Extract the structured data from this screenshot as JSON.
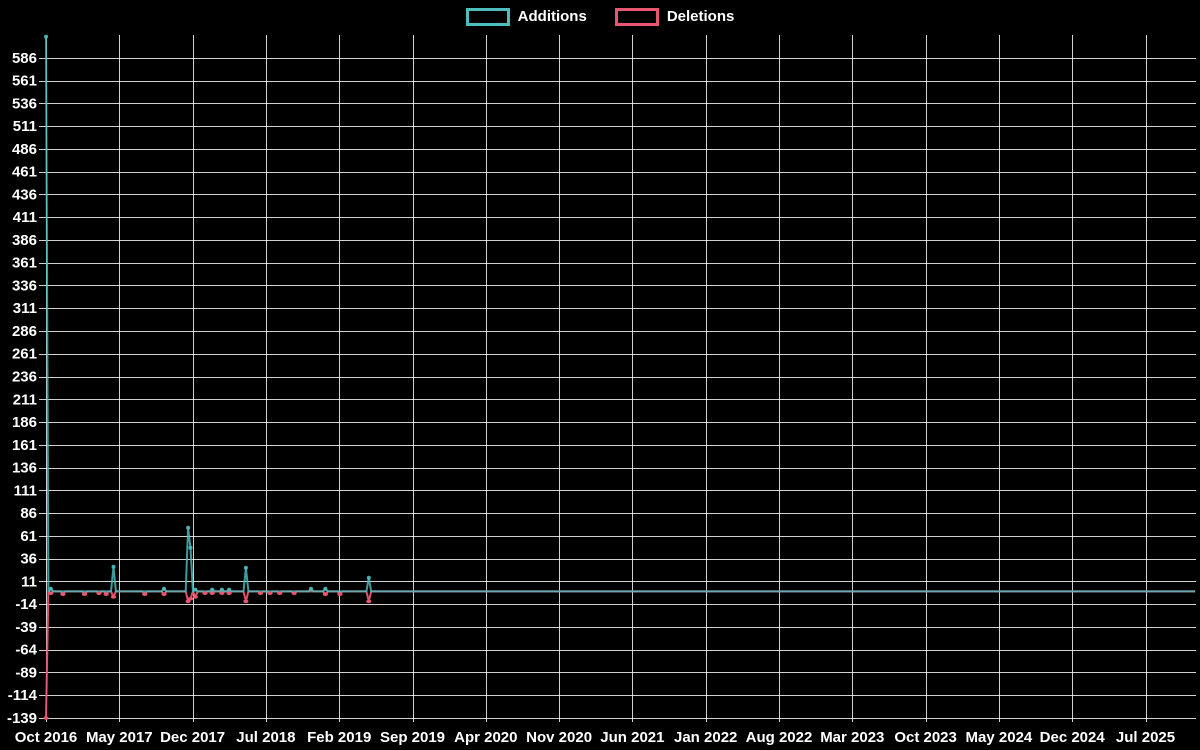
{
  "page": {
    "background": "#000000"
  },
  "legend": {
    "items": [
      {
        "label": "Additions",
        "color": "#4dbdbd"
      },
      {
        "label": "Deletions",
        "color": "#ea5672"
      }
    ]
  },
  "chart_data": {
    "type": "line",
    "title": "",
    "xlabel": "",
    "ylabel": "",
    "grid": true,
    "legend_position": "top-center",
    "background_color": "#000000",
    "grid_color": "#ffffff",
    "text_color": "#ffffff",
    "x_axis": {
      "tick_labels": [
        "Oct 2016",
        "May 2017",
        "Dec 2017",
        "Jul 2018",
        "Feb 2019",
        "Sep 2019",
        "Apr 2020",
        "Nov 2020",
        "Jun 2021",
        "Jan 2022",
        "Aug 2022",
        "Mar 2023",
        "Oct 2023",
        "May 2024",
        "Dec 2024",
        "Jul 2025"
      ],
      "months_per_gridline": 7,
      "range_start": "Oct 2016",
      "range_end": "Oct 2025"
    },
    "y_axis": {
      "tick_values": [
        586,
        561,
        536,
        511,
        486,
        461,
        436,
        411,
        386,
        361,
        336,
        311,
        286,
        261,
        236,
        211,
        186,
        161,
        136,
        111,
        86,
        61,
        36,
        11,
        -14,
        -39,
        -64,
        -89,
        -114,
        -139
      ],
      "tick_step": 25,
      "axis_min": -139,
      "axis_max": 611
    },
    "series": [
      {
        "name": "Additions",
        "color": "#4dbdbd",
        "default_value": 0
      },
      {
        "name": "Deletions",
        "color": "#ea5672",
        "default_value": 0
      }
    ],
    "weeks_total": 478,
    "points": [
      {
        "week": 0,
        "approx_date": "Oct 2016",
        "additions": 609,
        "deletions": -139
      },
      {
        "week": 2,
        "additions": 3,
        "deletions": -2
      },
      {
        "week": 7,
        "additions": 0,
        "deletions": -3
      },
      {
        "week": 16,
        "additions": 0,
        "deletions": -3
      },
      {
        "week": 22,
        "additions": 0,
        "deletions": -2
      },
      {
        "week": 25,
        "additions": 0,
        "deletions": -3
      },
      {
        "week": 28,
        "approx_date": "May 2017",
        "additions": 27,
        "deletions": -6
      },
      {
        "week": 41,
        "additions": 0,
        "deletions": -3
      },
      {
        "week": 49,
        "additions": 3,
        "deletions": -3
      },
      {
        "week": 59,
        "approx_date": "Dec 2017",
        "additions": 70,
        "deletions": -11
      },
      {
        "week": 60,
        "additions": 48,
        "deletions": -8
      },
      {
        "week": 62,
        "additions": 2,
        "deletions": -6
      },
      {
        "week": 66,
        "additions": 0,
        "deletions": -2
      },
      {
        "week": 69,
        "additions": 2,
        "deletions": -2
      },
      {
        "week": 73,
        "additions": 2,
        "deletions": -2
      },
      {
        "week": 76,
        "additions": 2,
        "deletions": -2
      },
      {
        "week": 83,
        "approx_date": "Jun 2018",
        "additions": 26,
        "deletions": -11
      },
      {
        "week": 89,
        "additions": 0,
        "deletions": -2
      },
      {
        "week": 93,
        "additions": 0,
        "deletions": -2
      },
      {
        "week": 97,
        "additions": 0,
        "deletions": -2
      },
      {
        "week": 103,
        "additions": 0,
        "deletions": -2
      },
      {
        "week": 110,
        "additions": 3,
        "deletions": 0
      },
      {
        "week": 116,
        "additions": 3,
        "deletions": -3
      },
      {
        "week": 122,
        "approx_date": "Feb 2019",
        "additions": 0,
        "deletions": -3
      },
      {
        "week": 134,
        "approx_date": "May 2019",
        "additions": 15,
        "deletions": -11
      }
    ]
  }
}
